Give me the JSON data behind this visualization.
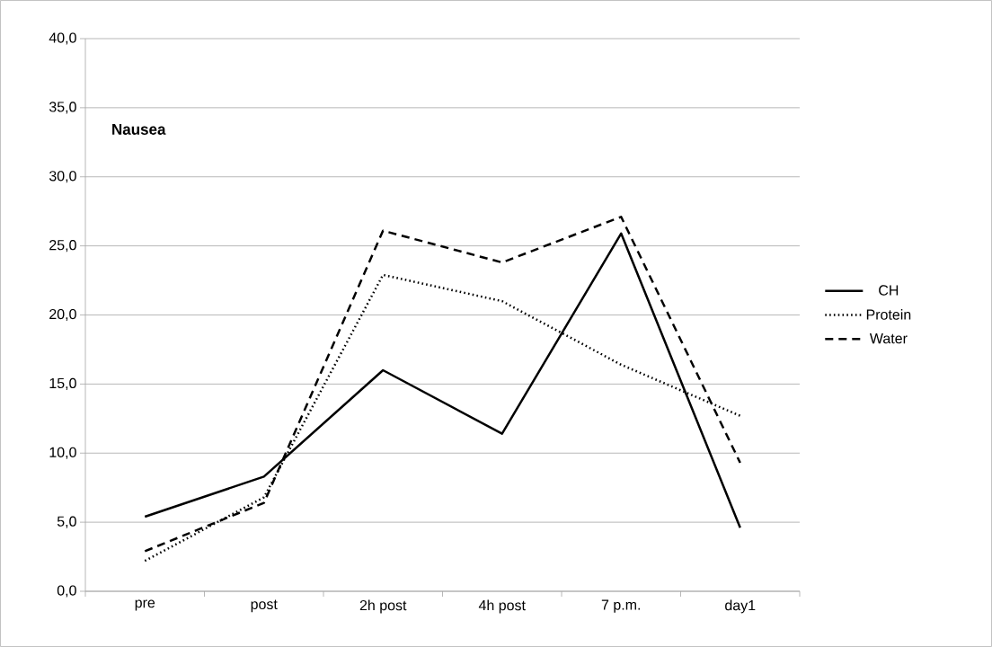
{
  "chart_data": {
    "type": "line",
    "title": "Nausea",
    "categories": [
      "pre",
      "post",
      "2h post",
      "4h post",
      "7 p.m.",
      "day1"
    ],
    "series": [
      {
        "name": "CH",
        "color": "#000000",
        "line_style": "solid",
        "values": [
          5.4,
          8.3,
          16.0,
          11.4,
          25.9,
          4.6
        ]
      },
      {
        "name": "Protein",
        "color": "#000000",
        "line_style": "dotted",
        "values": [
          2.2,
          6.8,
          22.9,
          21.0,
          16.4,
          12.7
        ]
      },
      {
        "name": "Water",
        "color": "#000000",
        "line_style": "dashed",
        "values": [
          2.9,
          6.4,
          26.1,
          23.8,
          27.1,
          9.3
        ]
      }
    ],
    "ylim": [
      0,
      40
    ],
    "yticks": [
      {
        "value": 0,
        "label": "0,0"
      },
      {
        "value": 5,
        "label": "5,0"
      },
      {
        "value": 10,
        "label": "10,0"
      },
      {
        "value": 15,
        "label": "15,0"
      },
      {
        "value": 20,
        "label": "20,0"
      },
      {
        "value": 25,
        "label": "25,0"
      },
      {
        "value": 30,
        "label": "30,0"
      },
      {
        "value": 35,
        "label": "35,0"
      },
      {
        "value": 40,
        "label": "40,0"
      }
    ],
    "grid": "y",
    "legend": "right",
    "marker": "none"
  }
}
